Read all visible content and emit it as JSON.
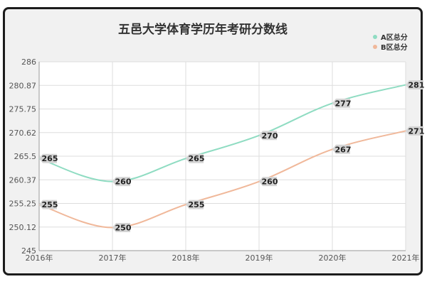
{
  "chart_data": {
    "type": "line",
    "title": "五邑大学体育学历年考研分数线",
    "categories": [
      "2016年",
      "2017年",
      "2018年",
      "2019年",
      "2020年",
      "2021年"
    ],
    "series": [
      {
        "name": "A区总分",
        "values": [
          265,
          260,
          265,
          270,
          277,
          281
        ],
        "color": "#8fdcc2"
      },
      {
        "name": "B区总分",
        "values": [
          255,
          250,
          255,
          260,
          267,
          271
        ],
        "color": "#f0b89a"
      }
    ],
    "y_ticks": [
      "245",
      "250.12",
      "255.25",
      "260.37",
      "265.5",
      "270.62",
      "275.75",
      "280.87",
      "286"
    ],
    "ylim": [
      245,
      286
    ],
    "grid": true,
    "legend_position": "top-right",
    "xlabel": "",
    "ylabel": ""
  }
}
